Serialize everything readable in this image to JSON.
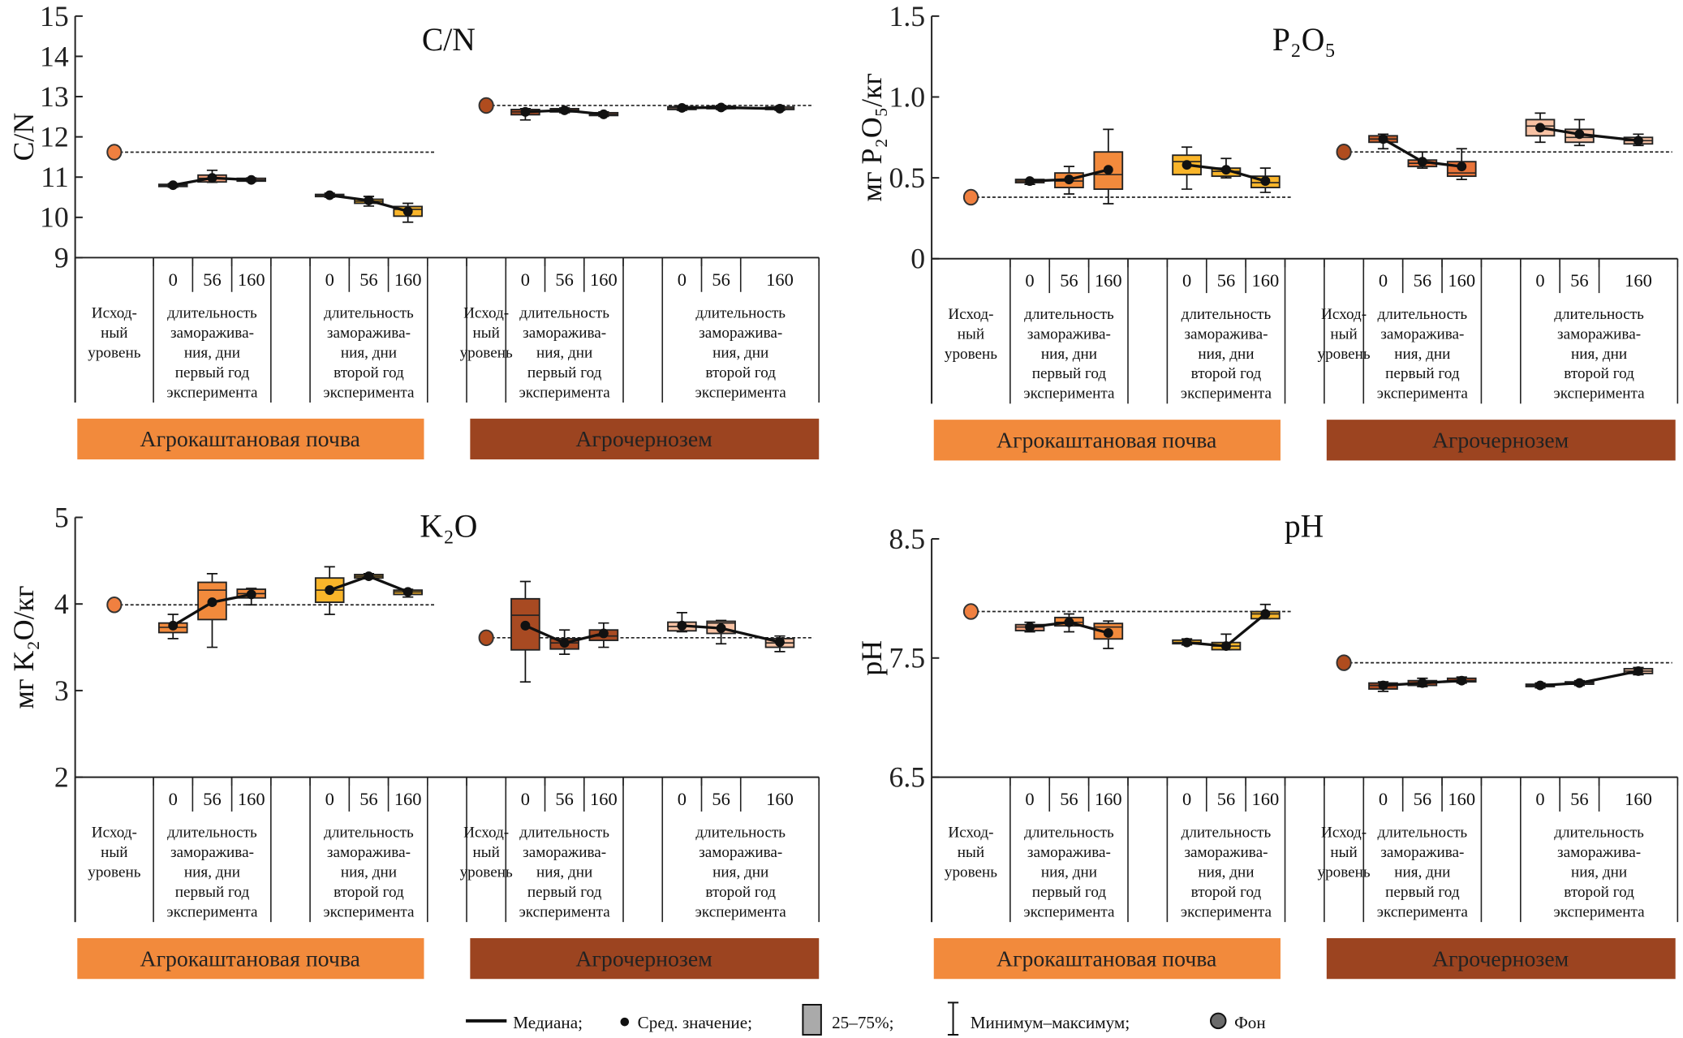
{
  "labels": {
    "days": [
      "0",
      "56",
      "160"
    ],
    "initial_level": [
      "Исход-",
      "ный",
      "уровень"
    ],
    "year1": [
      "длительность",
      "заморажива-",
      "ния, дни",
      "первый год",
      "эксперимента"
    ],
    "year2": [
      "длительность",
      "заморажива-",
      "ния, дни",
      "второй год",
      "эксперимента"
    ],
    "soil_kasht": "Агрокаштановая почва",
    "soil_chern": "Агрочернозем"
  },
  "colors": {
    "soil_kasht": "#f28a3c",
    "soil_chern": "#9c4420",
    "bg_kasht": "#f08040",
    "bg_chern": "#b04c1e"
  },
  "legend": {
    "median": "Медиана;",
    "mean": "Сред. значение;",
    "box": "25–75%;",
    "whisker": "Минимум–максимум;",
    "background": "Фон"
  },
  "chart_data": [
    {
      "type": "box",
      "title": "C/N",
      "ylabel": "C/N",
      "ylim": [
        9,
        15
      ],
      "yticks": [
        "9",
        "10",
        "11",
        "12",
        "13",
        "14",
        "15"
      ],
      "ytick_values": [
        9,
        10,
        11,
        12,
        13,
        14,
        15
      ],
      "background": {
        "kasht": 11.62,
        "chern": 12.78
      },
      "box_fields": [
        "q1",
        "q3",
        "median",
        "mean",
        "min",
        "max"
      ],
      "boxes": [
        [
          10.77,
          10.82,
          10.8,
          10.8,
          10.75,
          10.84
        ],
        [
          10.88,
          11.05,
          10.97,
          10.98,
          10.87,
          11.17
        ],
        [
          10.9,
          10.97,
          10.93,
          10.93,
          10.89,
          10.98
        ],
        [
          10.52,
          10.57,
          10.55,
          10.55,
          10.5,
          10.6
        ],
        [
          10.35,
          10.45,
          10.4,
          10.42,
          10.28,
          10.52
        ],
        [
          10.03,
          10.27,
          10.2,
          10.15,
          9.88,
          10.35
        ],
        [
          12.55,
          12.68,
          12.62,
          12.62,
          12.42,
          12.7
        ],
        [
          12.62,
          12.7,
          12.66,
          12.66,
          12.6,
          12.72
        ],
        [
          12.53,
          12.6,
          12.56,
          12.56,
          12.51,
          12.62
        ],
        [
          12.68,
          12.75,
          12.72,
          12.72,
          12.66,
          12.77
        ],
        [
          12.7,
          12.76,
          12.73,
          12.73,
          12.68,
          12.78
        ],
        [
          12.68,
          12.74,
          12.7,
          12.7,
          12.66,
          12.76
        ]
      ],
      "box_colors": [
        "#f28a3c",
        "#f4a07a",
        "#f4a07a",
        "#f9b52a",
        "#f9b52a",
        "#f9b52a",
        "#a84a22",
        "#a84a22",
        "#a84a22",
        "#f8c2a4",
        "#f8c2a4",
        "#f8c2a4"
      ]
    },
    {
      "type": "box",
      "title": "P₂O₅",
      "ylabel": "мг P₂O₅/кг",
      "ylim": [
        0,
        1.5
      ],
      "yticks": [
        "0",
        "0.5",
        "1.0",
        "1.5"
      ],
      "ytick_values": [
        0,
        0.5,
        1.0,
        1.5
      ],
      "background": {
        "kasht": 0.38,
        "chern": 0.66
      },
      "box_fields": [
        "q1",
        "q3",
        "median",
        "mean",
        "min",
        "max"
      ],
      "boxes": [
        [
          0.47,
          0.49,
          0.48,
          0.48,
          0.46,
          0.49
        ],
        [
          0.44,
          0.53,
          0.48,
          0.49,
          0.4,
          0.57
        ],
        [
          0.43,
          0.66,
          0.52,
          0.55,
          0.34,
          0.8
        ],
        [
          0.52,
          0.64,
          0.6,
          0.58,
          0.43,
          0.69
        ],
        [
          0.51,
          0.56,
          0.54,
          0.55,
          0.5,
          0.62
        ],
        [
          0.44,
          0.51,
          0.47,
          0.48,
          0.41,
          0.56
        ],
        [
          0.72,
          0.76,
          0.74,
          0.74,
          0.68,
          0.77
        ],
        [
          0.57,
          0.61,
          0.59,
          0.6,
          0.56,
          0.66
        ],
        [
          0.51,
          0.6,
          0.53,
          0.57,
          0.49,
          0.68
        ],
        [
          0.76,
          0.86,
          0.82,
          0.81,
          0.72,
          0.9
        ],
        [
          0.72,
          0.8,
          0.75,
          0.77,
          0.7,
          0.86
        ],
        [
          0.71,
          0.75,
          0.73,
          0.73,
          0.7,
          0.77
        ]
      ],
      "box_colors": [
        "#f28a3c",
        "#f28a3c",
        "#f28a3c",
        "#f9b52a",
        "#f9b52a",
        "#f9b52a",
        "#c8602e",
        "#e8743a",
        "#e8743a",
        "#f8c2a4",
        "#f8c2a4",
        "#f8c2a4"
      ]
    },
    {
      "type": "box",
      "title": "K₂O",
      "ylabel": "мг K₂O/кг",
      "ylim": [
        2,
        5
      ],
      "yticks": [
        "2",
        "3",
        "4",
        "5"
      ],
      "ytick_values": [
        2,
        3,
        4,
        5
      ],
      "background": {
        "kasht": 3.99,
        "chern": 3.61
      },
      "box_fields": [
        "q1",
        "q3",
        "median",
        "mean",
        "min",
        "max"
      ],
      "boxes": [
        [
          3.67,
          3.78,
          3.73,
          3.75,
          3.6,
          3.88
        ],
        [
          3.82,
          4.25,
          4.16,
          4.02,
          3.5,
          4.35
        ],
        [
          4.07,
          4.17,
          4.12,
          4.11,
          3.99,
          4.18
        ],
        [
          4.02,
          4.3,
          4.16,
          4.16,
          3.88,
          4.43
        ],
        [
          4.3,
          4.34,
          4.32,
          4.32,
          4.29,
          4.35
        ],
        [
          4.11,
          4.16,
          4.14,
          4.14,
          4.08,
          4.17
        ],
        [
          3.47,
          4.06,
          3.87,
          3.75,
          3.1,
          4.26
        ],
        [
          3.48,
          3.6,
          3.55,
          3.55,
          3.42,
          3.7
        ],
        [
          3.58,
          3.7,
          3.63,
          3.66,
          3.5,
          3.78
        ],
        [
          3.69,
          3.79,
          3.74,
          3.75,
          3.68,
          3.9
        ],
        [
          3.66,
          3.8,
          3.78,
          3.72,
          3.54,
          3.81
        ],
        [
          3.5,
          3.6,
          3.55,
          3.56,
          3.45,
          3.63
        ]
      ],
      "box_colors": [
        "#f28a3c",
        "#f28a3c",
        "#f28a3c",
        "#f9b52a",
        "#f9b52a",
        "#f9b52a",
        "#a84a22",
        "#a84a22",
        "#a84a22",
        "#f8c2a4",
        "#f8c2a4",
        "#f8c2a4"
      ]
    },
    {
      "type": "box",
      "title": "pH",
      "ylabel": "pH",
      "ylim": [
        6.5,
        8.5
      ],
      "yticks": [
        "6.5",
        "7.5",
        "8.5"
      ],
      "ytick_values": [
        6.5,
        7.5,
        8.5
      ],
      "background": {
        "kasht": 7.89,
        "chern": 7.46
      },
      "box_fields": [
        "q1",
        "q3",
        "median",
        "mean",
        "min",
        "max"
      ],
      "boxes": [
        [
          7.73,
          7.78,
          7.76,
          7.76,
          7.72,
          7.8
        ],
        [
          7.77,
          7.84,
          7.8,
          7.8,
          7.72,
          7.87
        ],
        [
          7.66,
          7.79,
          7.76,
          7.71,
          7.58,
          7.81
        ],
        [
          7.62,
          7.65,
          7.63,
          7.63,
          7.61,
          7.66
        ],
        [
          7.57,
          7.63,
          7.6,
          7.6,
          7.57,
          7.7
        ],
        [
          7.83,
          7.89,
          7.87,
          7.87,
          7.83,
          7.95
        ],
        [
          7.24,
          7.29,
          7.27,
          7.27,
          7.22,
          7.3
        ],
        [
          7.27,
          7.31,
          7.29,
          7.29,
          7.26,
          7.33
        ],
        [
          7.3,
          7.33,
          7.31,
          7.31,
          7.29,
          7.34
        ],
        [
          7.26,
          7.28,
          7.27,
          7.27,
          7.25,
          7.29
        ],
        [
          7.28,
          7.3,
          7.29,
          7.29,
          7.27,
          7.31
        ],
        [
          7.37,
          7.41,
          7.39,
          7.39,
          7.36,
          7.42
        ]
      ],
      "box_colors": [
        "#f4a07a",
        "#f28a3c",
        "#f28a3c",
        "#f9b52a",
        "#f9b52a",
        "#f9b52a",
        "#a84a22",
        "#a84a22",
        "#a84a22",
        "#f8c2a4",
        "#f8c2a4",
        "#f8c2a4"
      ]
    }
  ]
}
